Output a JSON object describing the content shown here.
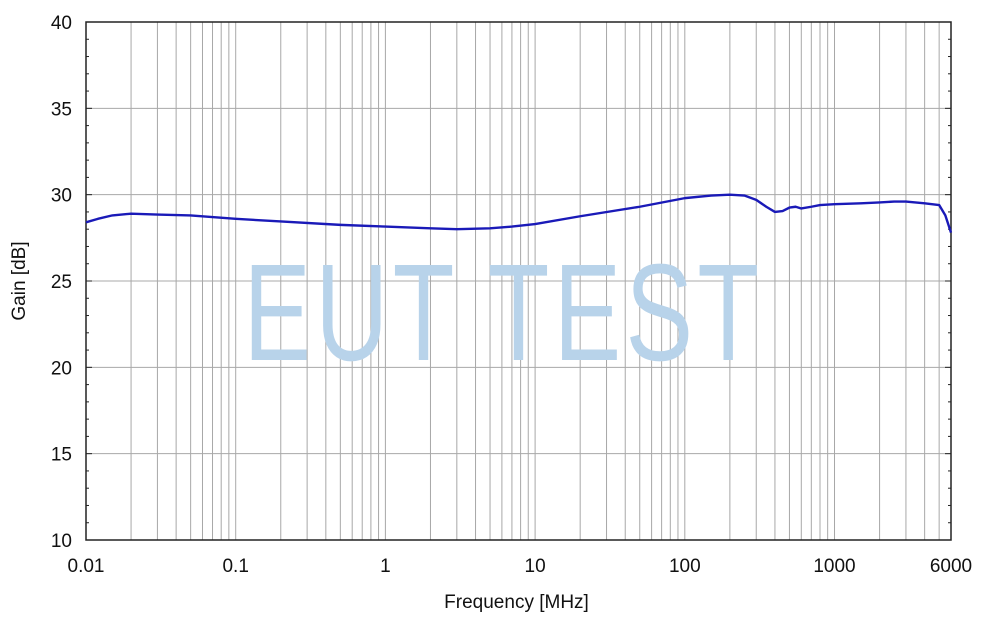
{
  "chart_data": {
    "type": "line",
    "title": "",
    "xlabel": "Frequency [MHz]",
    "ylabel": "Gain [dB]",
    "x_scale": "log",
    "xlim": [
      0.01,
      6000
    ],
    "ylim": [
      10,
      40
    ],
    "x_ticks": [
      {
        "value": 0.01,
        "label": "0.01"
      },
      {
        "value": 0.1,
        "label": "0.1"
      },
      {
        "value": 1,
        "label": "1"
      },
      {
        "value": 10,
        "label": "10"
      },
      {
        "value": 100,
        "label": "100"
      },
      {
        "value": 1000,
        "label": "1000"
      },
      {
        "value": 6000,
        "label": "6000"
      }
    ],
    "y_ticks": [
      {
        "value": 10,
        "label": "10"
      },
      {
        "value": 15,
        "label": "15"
      },
      {
        "value": 20,
        "label": "20"
      },
      {
        "value": 25,
        "label": "25"
      },
      {
        "value": 30,
        "label": "30"
      },
      {
        "value": 35,
        "label": "35"
      },
      {
        "value": 40,
        "label": "40"
      }
    ],
    "grid": true,
    "watermark": "EUT TEST",
    "colors": {
      "line": "#1a1ab8",
      "grid": "#a8a8a8",
      "watermark": "#b8d3ea",
      "frame": "#222222"
    },
    "series": [
      {
        "x": [
          0.01,
          0.012,
          0.015,
          0.02,
          0.03,
          0.05,
          0.1,
          0.2,
          0.5,
          1,
          2,
          3,
          5,
          7,
          10,
          20,
          50,
          100,
          150,
          200,
          250,
          300,
          350,
          400,
          450,
          500,
          550,
          600,
          700,
          800,
          1000,
          1500,
          2000,
          2500,
          3000,
          4000,
          5000,
          5500,
          6000
        ],
        "y": [
          28.4,
          28.6,
          28.8,
          28.9,
          28.85,
          28.8,
          28.6,
          28.45,
          28.25,
          28.15,
          28.05,
          28.0,
          28.05,
          28.15,
          28.3,
          28.75,
          29.3,
          29.8,
          29.95,
          30.0,
          29.95,
          29.7,
          29.3,
          29.0,
          29.05,
          29.25,
          29.3,
          29.2,
          29.3,
          29.4,
          29.45,
          29.5,
          29.55,
          29.6,
          29.6,
          29.5,
          29.4,
          28.8,
          27.8
        ]
      }
    ]
  }
}
